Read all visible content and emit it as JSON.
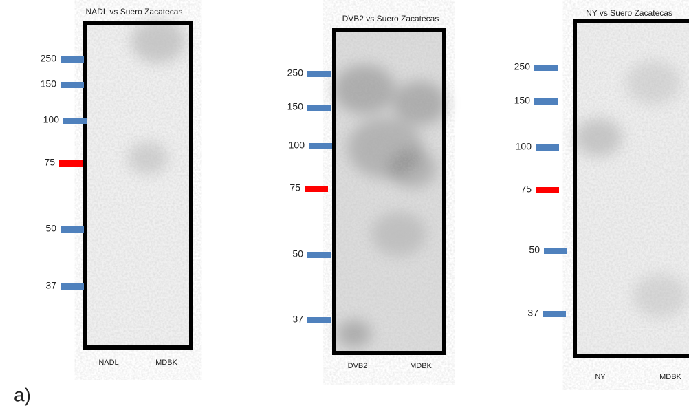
{
  "panels": [
    {
      "title": "NADL vs Suero Zacatecas",
      "markers": [
        {
          "label": "250",
          "color": "#4f81bd"
        },
        {
          "label": "150",
          "color": "#4f81bd"
        },
        {
          "label": "100",
          "color": "#4f81bd"
        },
        {
          "label": "75",
          "color": "#ff0000"
        },
        {
          "label": "50",
          "color": "#4f81bd"
        },
        {
          "label": "37",
          "color": "#4f81bd"
        }
      ],
      "lanes": [
        "NADL",
        "MDBK"
      ]
    },
    {
      "title": "DVB2 vs Suero Zacatecas",
      "markers": [
        {
          "label": "250",
          "color": "#4f81bd"
        },
        {
          "label": "150",
          "color": "#4f81bd"
        },
        {
          "label": "100",
          "color": "#4f81bd"
        },
        {
          "label": "75",
          "color": "#ff0000"
        },
        {
          "label": "50",
          "color": "#4f81bd"
        },
        {
          "label": "37",
          "color": "#4f81bd"
        }
      ],
      "lanes": [
        "DVB2",
        "MDBK"
      ]
    },
    {
      "title": "NY  vs Suero Zacatecas",
      "markers": [
        {
          "label": "250",
          "color": "#4f81bd"
        },
        {
          "label": "150",
          "color": "#4f81bd"
        },
        {
          "label": "100",
          "color": "#4f81bd"
        },
        {
          "label": "75",
          "color": "#ff0000"
        },
        {
          "label": "50",
          "color": "#4f81bd"
        },
        {
          "label": "37",
          "color": "#4f81bd"
        }
      ],
      "lanes": [
        "NY",
        "MDBK"
      ]
    }
  ],
  "panel_label": "a)"
}
